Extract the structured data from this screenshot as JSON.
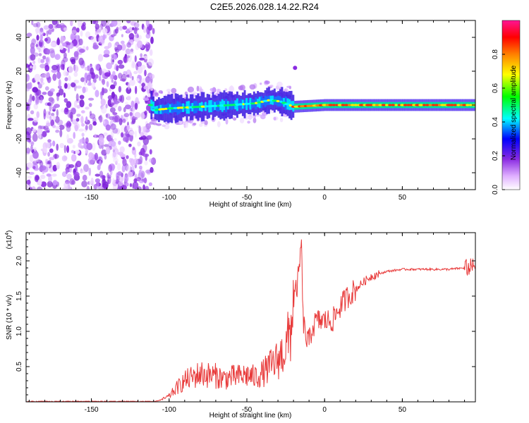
{
  "title": "C2E5.2026.028.14.22.R24",
  "chart_data": [
    {
      "type": "heatmap",
      "name": "spectrogram",
      "xlabel": "Height of straight line (km)",
      "ylabel": "Frequency (Hz)",
      "xlim": [
        -192,
        97
      ],
      "ylim": [
        -50,
        50
      ],
      "x_ticks": [
        -150,
        -100,
        -50,
        0,
        50
      ],
      "y_ticks": [
        -40,
        -20,
        0,
        20,
        40
      ],
      "colorbar": {
        "label": "Normalized spectral amplitude",
        "range": [
          0,
          1
        ],
        "ticks": [
          "0.0",
          "0.2",
          "0.4",
          "0.6",
          "0.8"
        ],
        "colors": [
          "#ffffff",
          "#e0b0ff",
          "#8a2be2",
          "#0000ff",
          "#00ffff",
          "#00ff00",
          "#ffff00",
          "#ff8000",
          "#ff0000",
          "#ff1493"
        ]
      },
      "noise_region_x": [
        -192,
        -110
      ],
      "signal_band_center": [
        {
          "x": -110,
          "y": -3
        },
        {
          "x": -100,
          "y": -2
        },
        {
          "x": -80,
          "y": -1
        },
        {
          "x": -60,
          "y": 0
        },
        {
          "x": -45,
          "y": 1
        },
        {
          "x": -35,
          "y": 3
        },
        {
          "x": -28,
          "y": 2
        },
        {
          "x": -20,
          "y": -1
        },
        {
          "x": 0,
          "y": 0
        },
        {
          "x": 50,
          "y": 0
        },
        {
          "x": 97,
          "y": 0
        }
      ]
    },
    {
      "type": "line",
      "name": "snr",
      "xlabel": "Height of straight line (km)",
      "ylabel": "SNR (10 * v/v)",
      "multiplier": "(x10",
      "multiplier_exp": "4",
      "multiplier_close": ")",
      "color": "#e83a3a",
      "xlim": [
        -192,
        97
      ],
      "ylim": [
        0,
        2.4
      ],
      "x_ticks": [
        -150,
        -100,
        -50,
        0,
        50
      ],
      "y_ticks": [
        "0.5",
        "1.0",
        "1.5",
        "2.0"
      ],
      "series": [
        {
          "name": "SNR",
          "x": [
            -192,
            -150,
            -110,
            -105,
            -100,
            -95,
            -90,
            -85,
            -80,
            -75,
            -70,
            -65,
            -60,
            -55,
            -50,
            -45,
            -40,
            -35,
            -30,
            -25,
            -22,
            -20,
            -18,
            -16,
            -15,
            -14,
            -12,
            -10,
            -8,
            -5,
            0,
            5,
            10,
            15,
            20,
            25,
            30,
            40,
            50,
            60,
            70,
            80,
            90,
            97
          ],
          "y": [
            0.0,
            0.0,
            0.0,
            0.03,
            0.08,
            0.2,
            0.3,
            0.35,
            0.4,
            0.38,
            0.37,
            0.33,
            0.35,
            0.36,
            0.38,
            0.35,
            0.4,
            0.5,
            0.6,
            0.75,
            1.0,
            1.45,
            1.6,
            1.9,
            2.4,
            1.2,
            0.9,
            0.85,
            1.05,
            1.15,
            1.15,
            1.15,
            1.35,
            1.5,
            1.6,
            1.7,
            1.78,
            1.85,
            1.88,
            1.88,
            1.88,
            1.88,
            1.9,
            1.92
          ]
        }
      ]
    }
  ]
}
